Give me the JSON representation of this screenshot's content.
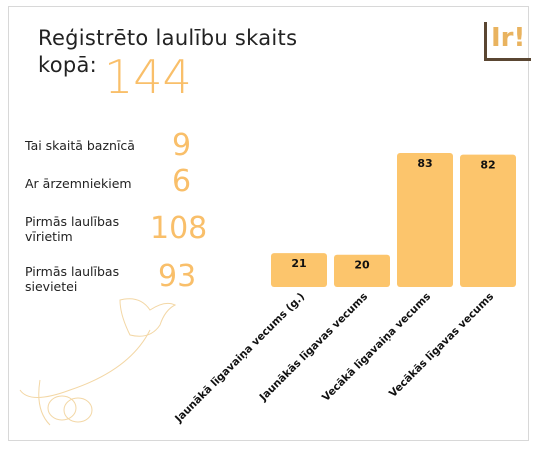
{
  "title_line1": "Reģistrēto laulību skaits",
  "title_line2": "kopā:",
  "total": 144,
  "logo": "Ir!",
  "stats": [
    {
      "label": "Tai skaitā baznīcā",
      "value": 9
    },
    {
      "label": "Ar ārzemniekiem",
      "value": 6
    },
    {
      "label": "Pirmās laulības vīrietim",
      "value": 108
    },
    {
      "label": "Pirmās laulības sievietei",
      "value": 93
    }
  ],
  "chart_data": {
    "type": "bar",
    "categories": [
      "Jaunākā līgavaiņa vecums (g.)",
      "Jaunākās līgavas vecums",
      "Vecākā līgavaiņa vecums",
      "Vecākās līgavas vecums"
    ],
    "values": [
      21,
      20,
      83,
      82
    ],
    "color": "#fcc56c"
  }
}
